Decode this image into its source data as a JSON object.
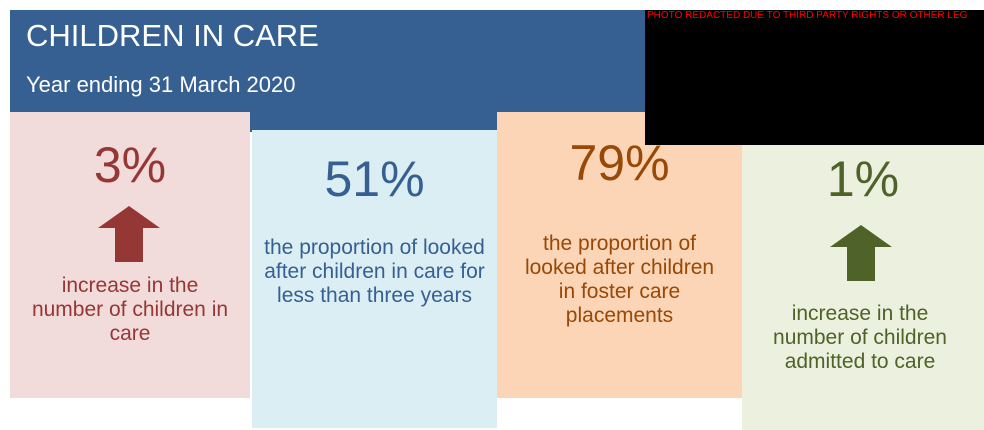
{
  "header": {
    "title": "CHILDREN IN CARE",
    "subtitle": "Year ending 31 March 2020"
  },
  "redacted_photo": {
    "notice": "PHOTO REDACTED DUE TO THIRD PARTY RIGHTS OR OTHER LEG"
  },
  "cards": [
    {
      "figure": "3%",
      "text": "increase in the number of children in care"
    },
    {
      "figure": "51%",
      "text": "the proportion of looked after children in care for less than three years"
    },
    {
      "figure": "79%",
      "text": "the proportion of looked after children in foster care placements"
    },
    {
      "figure": "1%",
      "text": "increase in the number of children admitted to care"
    }
  ]
}
